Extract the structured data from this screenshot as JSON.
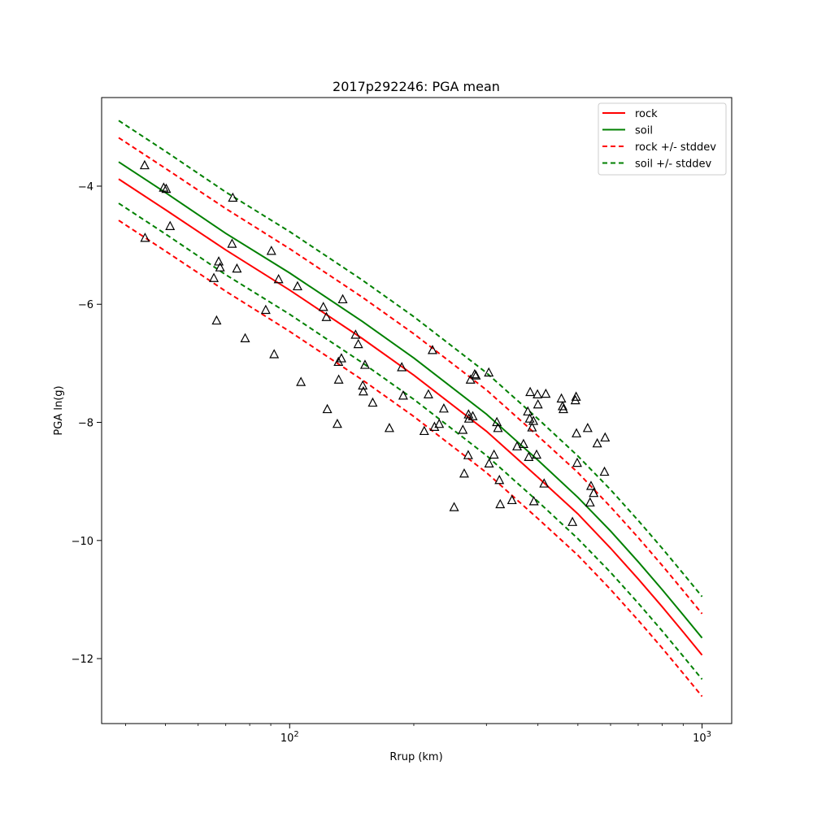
{
  "chart_data": {
    "type": "line",
    "title": "2017p292246: PGA mean",
    "xlabel": "Rrup (km)",
    "ylabel": "PGA ln(g)",
    "xscale": "log",
    "xlim": [
      35,
      1180
    ],
    "ylim": [
      -13.1,
      -2.5
    ],
    "grid": false,
    "legend_position": "top-right",
    "x_ticks": [
      100,
      1000
    ],
    "x_tick_labels": [
      "10^2",
      "10^3"
    ],
    "x_minor_ticks": [
      40,
      50,
      60,
      70,
      80,
      90,
      200,
      300,
      400,
      500,
      600,
      700,
      800,
      900
    ],
    "y_ticks": [
      -12,
      -10,
      -8,
      -6,
      -4
    ],
    "y_tick_labels": [
      "−12",
      "−10",
      "−8",
      "−6",
      "−4"
    ],
    "series": [
      {
        "name": "rock",
        "color": "#ff0000",
        "style": "solid",
        "x": [
          38.5,
          50,
          70,
          100,
          150,
          200,
          300,
          400,
          500,
          600,
          700,
          800,
          900,
          1000
        ],
        "y": [
          -3.88,
          -4.4,
          -5.08,
          -5.76,
          -6.58,
          -7.2,
          -8.15,
          -8.93,
          -9.55,
          -10.13,
          -10.65,
          -11.12,
          -11.55,
          -11.94
        ]
      },
      {
        "name": "soil",
        "color": "#008000",
        "style": "solid",
        "x": [
          38.5,
          50,
          70,
          100,
          150,
          200,
          300,
          400,
          500,
          600,
          700,
          800,
          900,
          1000
        ],
        "y": [
          -3.59,
          -4.11,
          -4.8,
          -5.47,
          -6.29,
          -6.91,
          -7.86,
          -8.64,
          -9.27,
          -9.84,
          -10.36,
          -10.83,
          -11.26,
          -11.65
        ]
      },
      {
        "name": "rock +/- stddev",
        "color": "#ff0000",
        "style": "dashed",
        "x": [
          38.5,
          50,
          70,
          100,
          150,
          200,
          300,
          400,
          500,
          600,
          700,
          800,
          900,
          1000
        ],
        "y": [
          -3.18,
          -3.7,
          -4.38,
          -5.06,
          -5.88,
          -6.5,
          -7.45,
          -8.23,
          -8.85,
          -9.43,
          -9.95,
          -10.42,
          -10.85,
          -11.24
        ]
      },
      {
        "name": "",
        "color": "#ff0000",
        "style": "dashed",
        "x": [
          38.5,
          50,
          70,
          100,
          150,
          200,
          300,
          400,
          500,
          600,
          700,
          800,
          900,
          1000
        ],
        "y": [
          -4.58,
          -5.1,
          -5.78,
          -6.46,
          -7.28,
          -7.9,
          -8.85,
          -9.63,
          -10.25,
          -10.83,
          -11.35,
          -11.82,
          -12.25,
          -12.64
        ]
      },
      {
        "name": "soil +/- stddev",
        "color": "#008000",
        "style": "dashed",
        "x": [
          38.5,
          50,
          70,
          100,
          150,
          200,
          300,
          400,
          500,
          600,
          700,
          800,
          900,
          1000
        ],
        "y": [
          -2.89,
          -3.41,
          -4.1,
          -4.77,
          -5.59,
          -6.21,
          -7.16,
          -7.94,
          -8.57,
          -9.14,
          -9.66,
          -10.13,
          -10.56,
          -10.95
        ]
      },
      {
        "name": "",
        "color": "#008000",
        "style": "dashed",
        "x": [
          38.5,
          50,
          70,
          100,
          150,
          200,
          300,
          400,
          500,
          600,
          700,
          800,
          900,
          1000
        ],
        "y": [
          -4.29,
          -4.81,
          -5.5,
          -6.17,
          -6.99,
          -7.61,
          -8.56,
          -9.34,
          -9.97,
          -10.54,
          -11.06,
          -11.53,
          -11.96,
          -12.35
        ]
      }
    ],
    "legend": [
      {
        "label": "rock",
        "color": "#ff0000",
        "style": "solid"
      },
      {
        "label": "soil",
        "color": "#008000",
        "style": "solid"
      },
      {
        "label": "rock +/- stddev",
        "color": "#ff0000",
        "style": "dashed"
      },
      {
        "label": "soil +/- stddev",
        "color": "#008000",
        "style": "dashed"
      }
    ],
    "observations": {
      "marker": "triangle",
      "color": "#000000",
      "points": [
        [
          44.5,
          -3.65
        ],
        [
          44.6,
          -4.88
        ],
        [
          49.5,
          -4.03
        ],
        [
          50.2,
          -4.05
        ],
        [
          51.3,
          -4.68
        ],
        [
          65.5,
          -5.56
        ],
        [
          66.5,
          -6.28
        ],
        [
          67.3,
          -5.28
        ],
        [
          67.8,
          -5.38
        ],
        [
          72.5,
          -4.98
        ],
        [
          72.8,
          -4.2
        ],
        [
          74.5,
          -5.4
        ],
        [
          78.0,
          -6.58
        ],
        [
          87.5,
          -6.1
        ],
        [
          90.3,
          -5.1
        ],
        [
          91.7,
          -6.85
        ],
        [
          94.0,
          -5.58
        ],
        [
          104.5,
          -5.7
        ],
        [
          106.5,
          -7.32
        ],
        [
          120.7,
          -6.05
        ],
        [
          122.8,
          -6.22
        ],
        [
          123.4,
          -7.78
        ],
        [
          130.5,
          -8.03
        ],
        [
          131.3,
          -6.98
        ],
        [
          131.5,
          -7.28
        ],
        [
          133.5,
          -6.92
        ],
        [
          134.5,
          -5.92
        ],
        [
          144.5,
          -6.52
        ],
        [
          146.7,
          -6.68
        ],
        [
          150.4,
          -7.38
        ],
        [
          150.9,
          -7.48
        ],
        [
          152.3,
          -7.03
        ],
        [
          159.0,
          -7.67
        ],
        [
          174.5,
          -8.1
        ],
        [
          187.0,
          -7.07
        ],
        [
          188.5,
          -7.55
        ],
        [
          212.0,
          -8.15
        ],
        [
          217.0,
          -7.53
        ],
        [
          222.0,
          -6.78
        ],
        [
          224.5,
          -8.08
        ],
        [
          230.5,
          -8.03
        ],
        [
          236.5,
          -7.77
        ],
        [
          250.5,
          -9.44
        ],
        [
          263.0,
          -8.13
        ],
        [
          265.0,
          -8.87
        ],
        [
          271.0,
          -8.56
        ],
        [
          271.5,
          -7.87
        ],
        [
          272.0,
          -7.94
        ],
        [
          274.5,
          -7.28
        ],
        [
          278.0,
          -7.9
        ],
        [
          281.0,
          -7.19
        ],
        [
          283.0,
          -7.21
        ],
        [
          304.0,
          -7.16
        ],
        [
          304.5,
          -8.7
        ],
        [
          313.0,
          -8.55
        ],
        [
          318.0,
          -8.0
        ],
        [
          320.0,
          -8.1
        ],
        [
          322.5,
          -8.98
        ],
        [
          324.0,
          -9.39
        ],
        [
          346.0,
          -9.32
        ],
        [
          356.0,
          -8.41
        ],
        [
          369.0,
          -8.37
        ],
        [
          378.0,
          -7.82
        ],
        [
          380.0,
          -8.59
        ],
        [
          382.0,
          -7.94
        ],
        [
          383.0,
          -7.49
        ],
        [
          387.0,
          -8.09
        ],
        [
          390.0,
          -7.98
        ],
        [
          391.0,
          -9.34
        ],
        [
          397.0,
          -8.55
        ],
        [
          399.0,
          -7.53
        ],
        [
          400.0,
          -7.7
        ],
        [
          414.0,
          -9.04
        ],
        [
          418.0,
          -7.52
        ],
        [
          456.0,
          -7.6
        ],
        [
          459.0,
          -7.73
        ],
        [
          461.0,
          -7.78
        ],
        [
          485.0,
          -9.69
        ],
        [
          493.0,
          -7.63
        ],
        [
          495.0,
          -7.57
        ],
        [
          496.0,
          -8.19
        ],
        [
          498.0,
          -8.69
        ],
        [
          528.0,
          -8.1
        ],
        [
          535.0,
          -9.36
        ],
        [
          538.0,
          -9.08
        ],
        [
          546.0,
          -9.2
        ],
        [
          557.0,
          -8.36
        ],
        [
          580.0,
          -8.84
        ],
        [
          582.0,
          -8.26
        ]
      ]
    }
  }
}
